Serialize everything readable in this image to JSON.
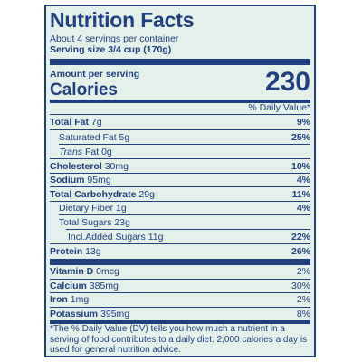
{
  "title": "Nutrition Facts",
  "servings_per_container": "About 4 servings per container",
  "serving_size_label": "Serving size",
  "serving_size_value": "3/4 cup (170g)",
  "amount_per_serving": "Amount per serving",
  "calories_label": "Calories",
  "calories_value": "230",
  "daily_value_header": "% Daily Value*",
  "nutrients": [
    {
      "name": "Total Fat",
      "amount": "7g",
      "dv": "9%"
    },
    {
      "name": "Saturated Fat",
      "amount": "5g",
      "dv": "25%"
    },
    {
      "name": "Trans",
      "amount": "Fat 0g",
      "dv": ""
    },
    {
      "name": "Cholesterol",
      "amount": "30mg",
      "dv": "10%"
    },
    {
      "name": "Sodium",
      "amount": "95mg",
      "dv": "4%"
    },
    {
      "name": "Total Carbohydrate",
      "amount": "29g",
      "dv": "11%"
    },
    {
      "name": "Dietary Fiber",
      "amount": "1g",
      "dv": "4%"
    },
    {
      "name": "Total Sugars",
      "amount": "23g",
      "dv": ""
    },
    {
      "name": "Incl.Added Sugars",
      "amount": "11g",
      "dv": "22%"
    },
    {
      "name": "Protein",
      "amount": "13g",
      "dv": "26%"
    }
  ],
  "vitamins": [
    {
      "name": "Vitamin D",
      "amount": "0mcg",
      "dv": "2%"
    },
    {
      "name": "Calcium",
      "amount": "385mg",
      "dv": "30%"
    },
    {
      "name": "Iron",
      "amount": "1mg",
      "dv": "2%"
    },
    {
      "name": "Potassium",
      "amount": "395mg",
      "dv": "8%"
    }
  ],
  "footnote": "*The % Daily Value (DV) tells you how much a nutrient in a serving of food contributes to a daily diet. 2,000 calories a day is used for general nutrition advice."
}
